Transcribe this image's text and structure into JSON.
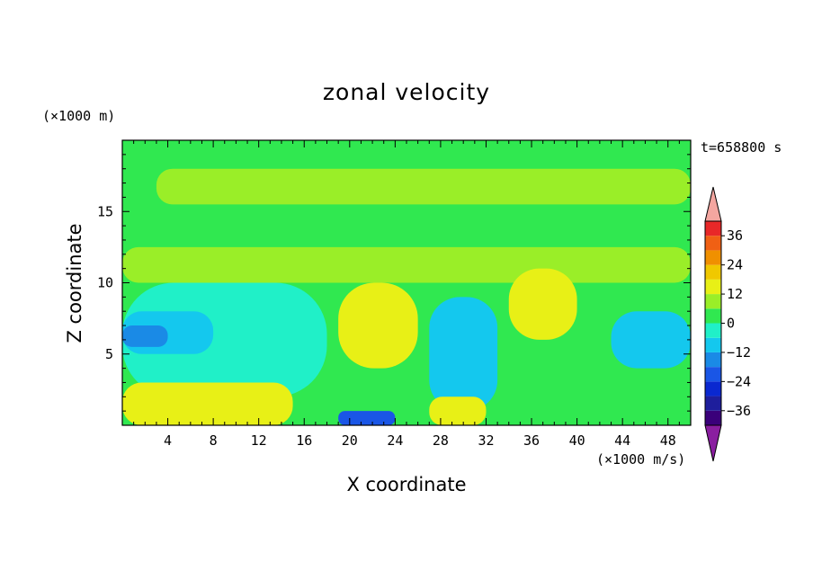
{
  "chart_data": {
    "type": "heatmap",
    "title": "zonal velocity",
    "xlabel": "X coordinate",
    "ylabel": "Z coordinate",
    "x_unit": "(×1000 m/s)",
    "y_unit": "(×1000 m)",
    "time_label": "t=658800 s",
    "xlim": [
      0,
      50
    ],
    "ylim": [
      0,
      20
    ],
    "xticks": [
      4,
      8,
      12,
      16,
      20,
      24,
      28,
      32,
      36,
      40,
      44,
      48
    ],
    "yticks": [
      5,
      10,
      15
    ],
    "colorbar": {
      "ticks": [
        36,
        24,
        12,
        0,
        -12,
        -24,
        -36
      ],
      "levels": [
        -42,
        -36,
        -30,
        -24,
        -18,
        -12,
        -6,
        0,
        6,
        12,
        18,
        24,
        30,
        36,
        42
      ],
      "colors": [
        "#3a007a",
        "#1e1e9c",
        "#0a28d0",
        "#1a56e6",
        "#1a8ae6",
        "#14c8ee",
        "#20f0c8",
        "#30e850",
        "#9aee28",
        "#e8f016",
        "#f0c800",
        "#f09000",
        "#f06014",
        "#e82828"
      ],
      "under_color": "#8a1ea0",
      "over_color": "#f4a6a0"
    },
    "regions": [
      {
        "value": 0,
        "z": [
          0,
          20
        ],
        "x": [
          0,
          50
        ]
      },
      {
        "value": 6,
        "z": [
          15.5,
          18
        ],
        "x": [
          3,
          50
        ],
        "note": "upper band"
      },
      {
        "value": 6,
        "z": [
          10,
          12.5
        ],
        "x": [
          0,
          50
        ]
      },
      {
        "value": -6,
        "z": [
          2,
          10
        ],
        "x": [
          0,
          18
        ]
      },
      {
        "value": -12,
        "z": [
          5,
          8
        ],
        "x": [
          0,
          8
        ]
      },
      {
        "value": -18,
        "z": [
          5.5,
          7
        ],
        "x": [
          0,
          4
        ]
      },
      {
        "value": 12,
        "z": [
          0,
          3
        ],
        "x": [
          0,
          15
        ]
      },
      {
        "value": 12,
        "z": [
          4,
          10
        ],
        "x": [
          19,
          26
        ]
      },
      {
        "value": -12,
        "z": [
          1,
          9
        ],
        "x": [
          27,
          33
        ]
      },
      {
        "value": 12,
        "z": [
          6,
          11
        ],
        "x": [
          34,
          40
        ]
      },
      {
        "value": -24,
        "z": [
          0,
          1
        ],
        "x": [
          19,
          24
        ]
      },
      {
        "value": -12,
        "z": [
          4,
          8
        ],
        "x": [
          43,
          50
        ]
      },
      {
        "value": 12,
        "z": [
          0,
          2
        ],
        "x": [
          27,
          32
        ]
      }
    ]
  }
}
